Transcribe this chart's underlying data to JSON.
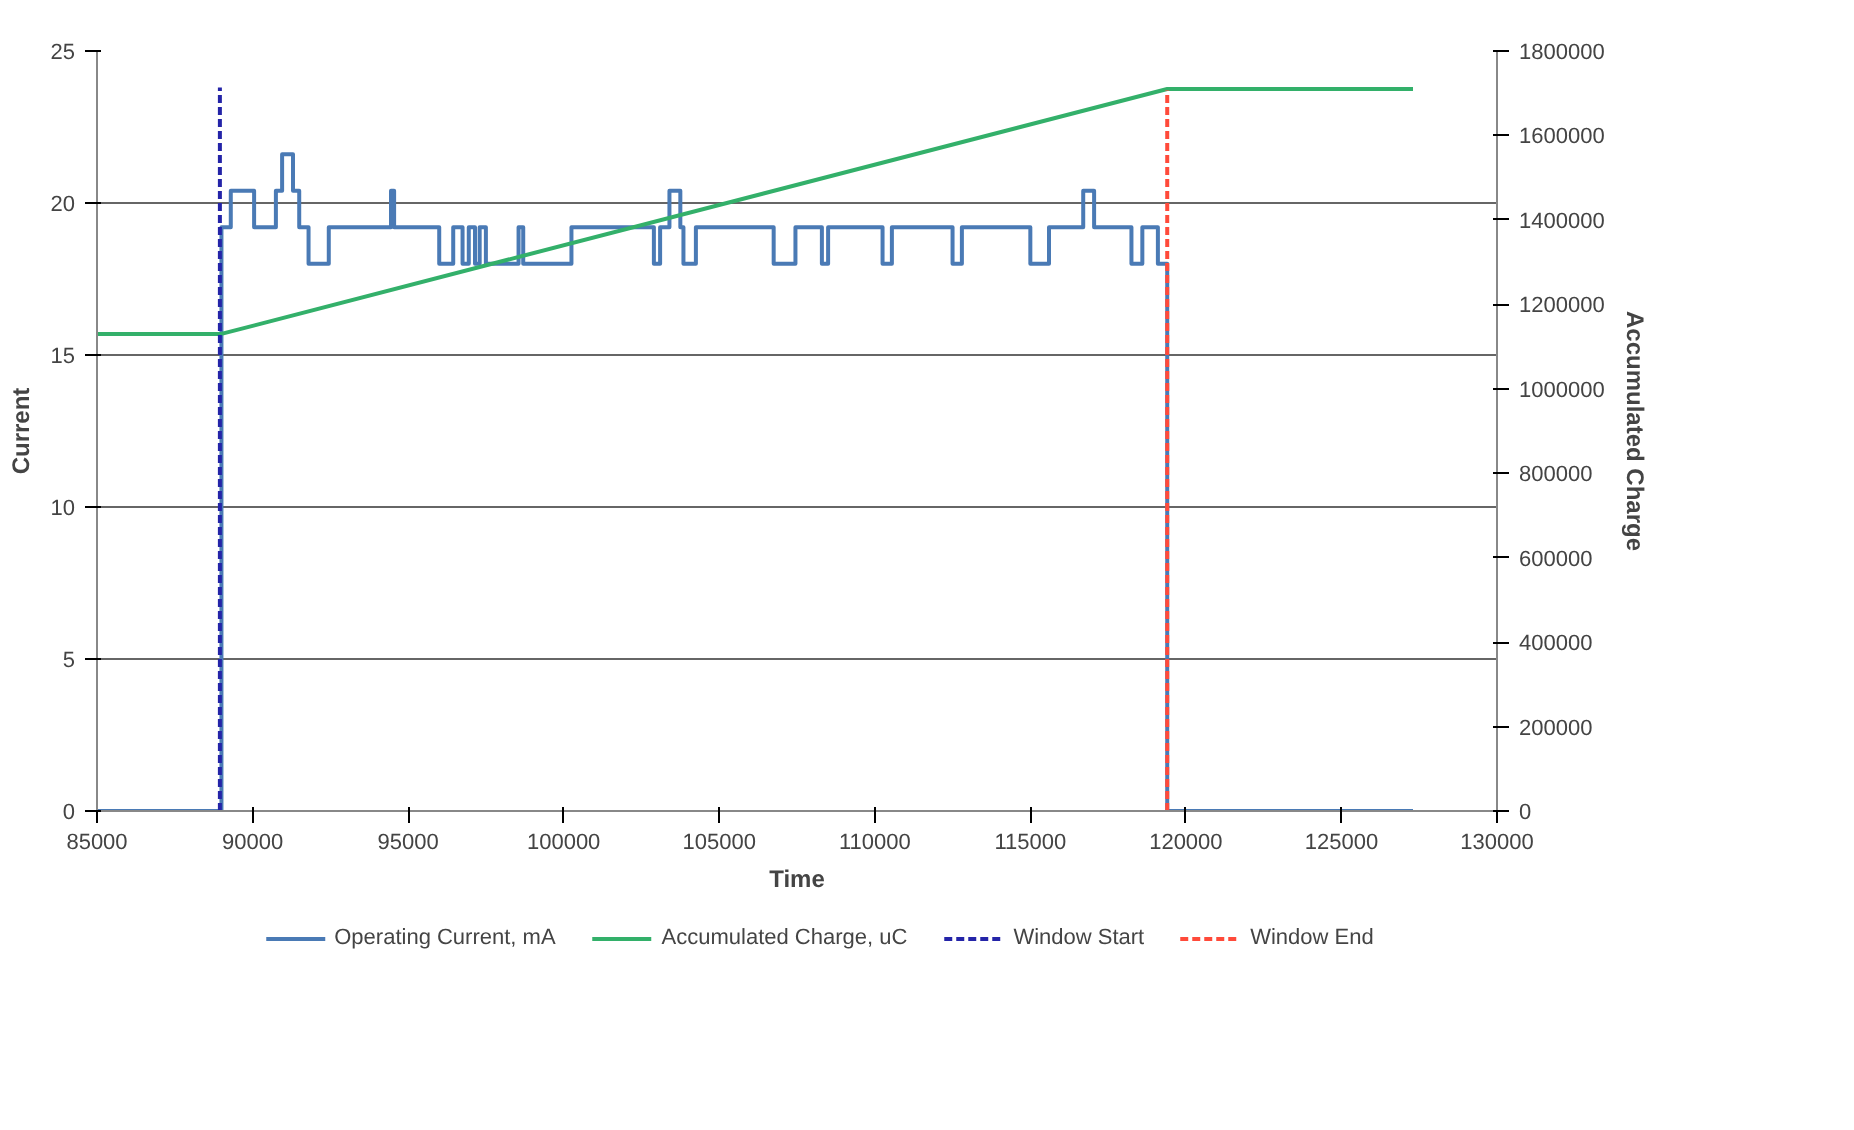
{
  "chart_data": {
    "type": "line",
    "xlabel": "Time",
    "ylabel": "Current",
    "y2label": "Accumulated Charge",
    "xlim": [
      85000,
      130000
    ],
    "xticks": [
      85000,
      90000,
      95000,
      100000,
      105000,
      110000,
      115000,
      120000,
      125000,
      130000
    ],
    "ylim": [
      0,
      25
    ],
    "yticks": [
      0,
      5,
      10,
      15,
      20,
      25
    ],
    "y2lim": [
      0,
      1800000
    ],
    "y2ticks": [
      0,
      200000,
      400000,
      600000,
      800000,
      1000000,
      1200000,
      1400000,
      1600000,
      1800000
    ],
    "grid": "y",
    "legend": "bottom",
    "series": [
      {
        "name": "Operating Current, mA",
        "type": "step",
        "color": "#4a7ab5",
        "line_style": "solid",
        "x": [
          85000,
          89000,
          89300,
          90050,
          90750,
          90950,
          91300,
          91500,
          91800,
          92450,
          94450,
          94550,
          96000,
          96450,
          96750,
          96950,
          97150,
          97300,
          97500,
          98550,
          98700,
          100250,
          102900,
          103100,
          103400,
          103750,
          103850,
          104250,
          106750,
          107450,
          108300,
          108500,
          110250,
          110550,
          112500,
          112800,
          115000,
          115600,
          116700,
          117050,
          118250,
          118600,
          119100,
          119400,
          127300
        ],
        "values": [
          0,
          19.2,
          20.4,
          19.2,
          20.4,
          21.6,
          20.4,
          19.2,
          18,
          19.2,
          20.4,
          19.2,
          18,
          19.2,
          18,
          19.2,
          18,
          19.2,
          18,
          19.2,
          18,
          19.2,
          18,
          19.2,
          20.4,
          19.2,
          18,
          19.2,
          18,
          19.2,
          18,
          19.2,
          18,
          19.2,
          18,
          19.2,
          18,
          19.2,
          20.4,
          19.2,
          18,
          19.2,
          18,
          0,
          0
        ]
      },
      {
        "name": "Accumulated Charge, uC",
        "type": "line",
        "color": "#33b06a",
        "line_style": "solid",
        "axis": "y2",
        "x": [
          85000,
          89000,
          119400,
          127300
        ],
        "values": [
          1130000,
          1130000,
          1710000,
          1710000
        ]
      },
      {
        "name": "Window Start",
        "type": "line",
        "color": "#2424a8",
        "line_style": "dashed",
        "x": [
          88950,
          88950
        ],
        "values": [
          0,
          23.8
        ]
      },
      {
        "name": "Window End",
        "type": "line",
        "color": "#ff4a3a",
        "line_style": "dashed",
        "x": [
          119400,
          119400
        ],
        "values": [
          0,
          23.7
        ]
      }
    ]
  }
}
